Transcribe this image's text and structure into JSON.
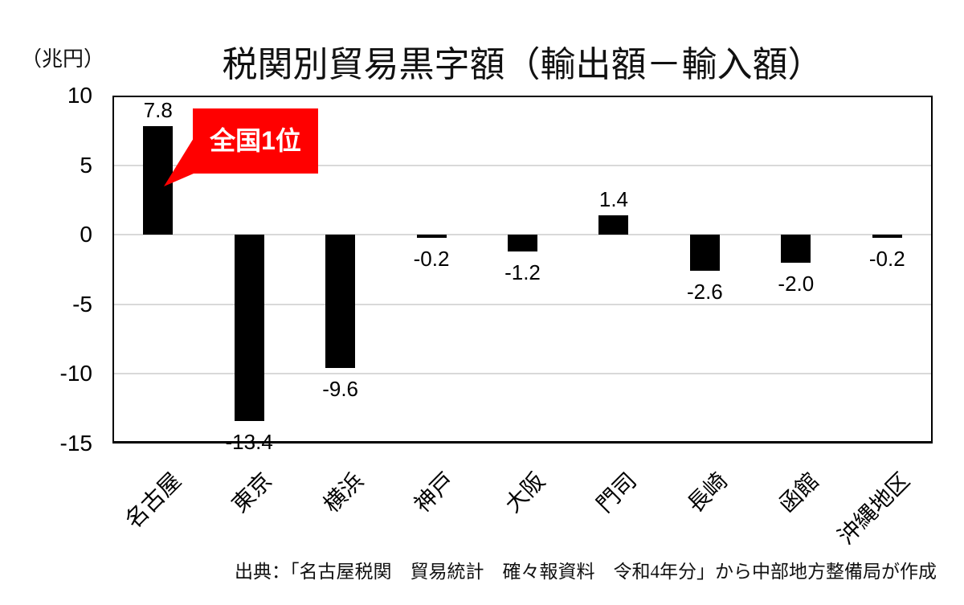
{
  "page": {
    "unit_label": "（兆円）",
    "source": "出典：「名古屋税関　貿易統計　確々報資料　令和4年分」から中部地方整備局が作成"
  },
  "chart_data": {
    "type": "bar",
    "title": "税関別貿易黒字額（輸出額－輸入額）",
    "unit": "兆円",
    "xlabel": "",
    "ylabel": "（兆円）",
    "categories": [
      "名古屋",
      "東京",
      "横浜",
      "神戸",
      "大阪",
      "門司",
      "長崎",
      "函館",
      "沖縄地区"
    ],
    "values": [
      7.8,
      -13.4,
      -9.6,
      -0.2,
      -1.2,
      1.4,
      -2.6,
      -2.0,
      -0.2
    ],
    "value_labels": [
      "7.8",
      "-13.4",
      "-9.6",
      "-0.2",
      "-1.2",
      "1.4",
      "-2.6",
      "-2.0",
      "-0.2"
    ],
    "ylim": [
      -15,
      10
    ],
    "yticks": [
      10,
      5,
      0,
      -5,
      -10,
      -15
    ],
    "gridline_values": [
      5,
      0,
      -5,
      -10
    ],
    "grid_on": true,
    "legend": false,
    "bar_color": "#000000",
    "grid_color": "#d9d9d9",
    "annotation": {
      "text": "全国1位",
      "target": "名古屋",
      "box_color": "#ff0000",
      "text_color": "#ffffff"
    }
  }
}
